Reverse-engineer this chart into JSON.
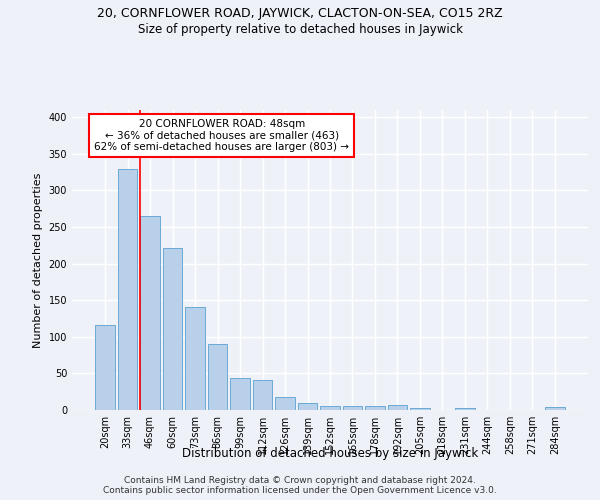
{
  "title": "20, CORNFLOWER ROAD, JAYWICK, CLACTON-ON-SEA, CO15 2RZ",
  "subtitle": "Size of property relative to detached houses in Jaywick",
  "xlabel": "Distribution of detached houses by size in Jaywick",
  "ylabel": "Number of detached properties",
  "categories": [
    "20sqm",
    "33sqm",
    "46sqm",
    "60sqm",
    "73sqm",
    "86sqm",
    "99sqm",
    "112sqm",
    "126sqm",
    "139sqm",
    "152sqm",
    "165sqm",
    "178sqm",
    "192sqm",
    "205sqm",
    "218sqm",
    "231sqm",
    "244sqm",
    "258sqm",
    "271sqm",
    "284sqm"
  ],
  "values": [
    116,
    330,
    265,
    222,
    141,
    90,
    44,
    41,
    18,
    9,
    6,
    5,
    6,
    7,
    3,
    0,
    3,
    0,
    0,
    0,
    4
  ],
  "bar_color": "#b8d0ea",
  "bar_edge_color": "#6aaad4",
  "property_line_index": 2,
  "annotation_line1": "20 CORNFLOWER ROAD: 48sqm",
  "annotation_line2": "← 36% of detached houses are smaller (463)",
  "annotation_line3": "62% of semi-detached houses are larger (803) →",
  "annotation_box_color": "white",
  "annotation_box_edge": "red",
  "vline_color": "red",
  "footer_line1": "Contains HM Land Registry data © Crown copyright and database right 2024.",
  "footer_line2": "Contains public sector information licensed under the Open Government Licence v3.0.",
  "ylim": [
    0,
    410
  ],
  "yticks": [
    0,
    50,
    100,
    150,
    200,
    250,
    300,
    350,
    400
  ],
  "background_color": "#eef2f8",
  "grid_color": "white",
  "title_fontsize": 9,
  "subtitle_fontsize": 8.5,
  "ylabel_fontsize": 8,
  "xlabel_fontsize": 8.5,
  "tick_fontsize": 7,
  "annotation_fontsize": 7.5,
  "footer_fontsize": 6.5
}
